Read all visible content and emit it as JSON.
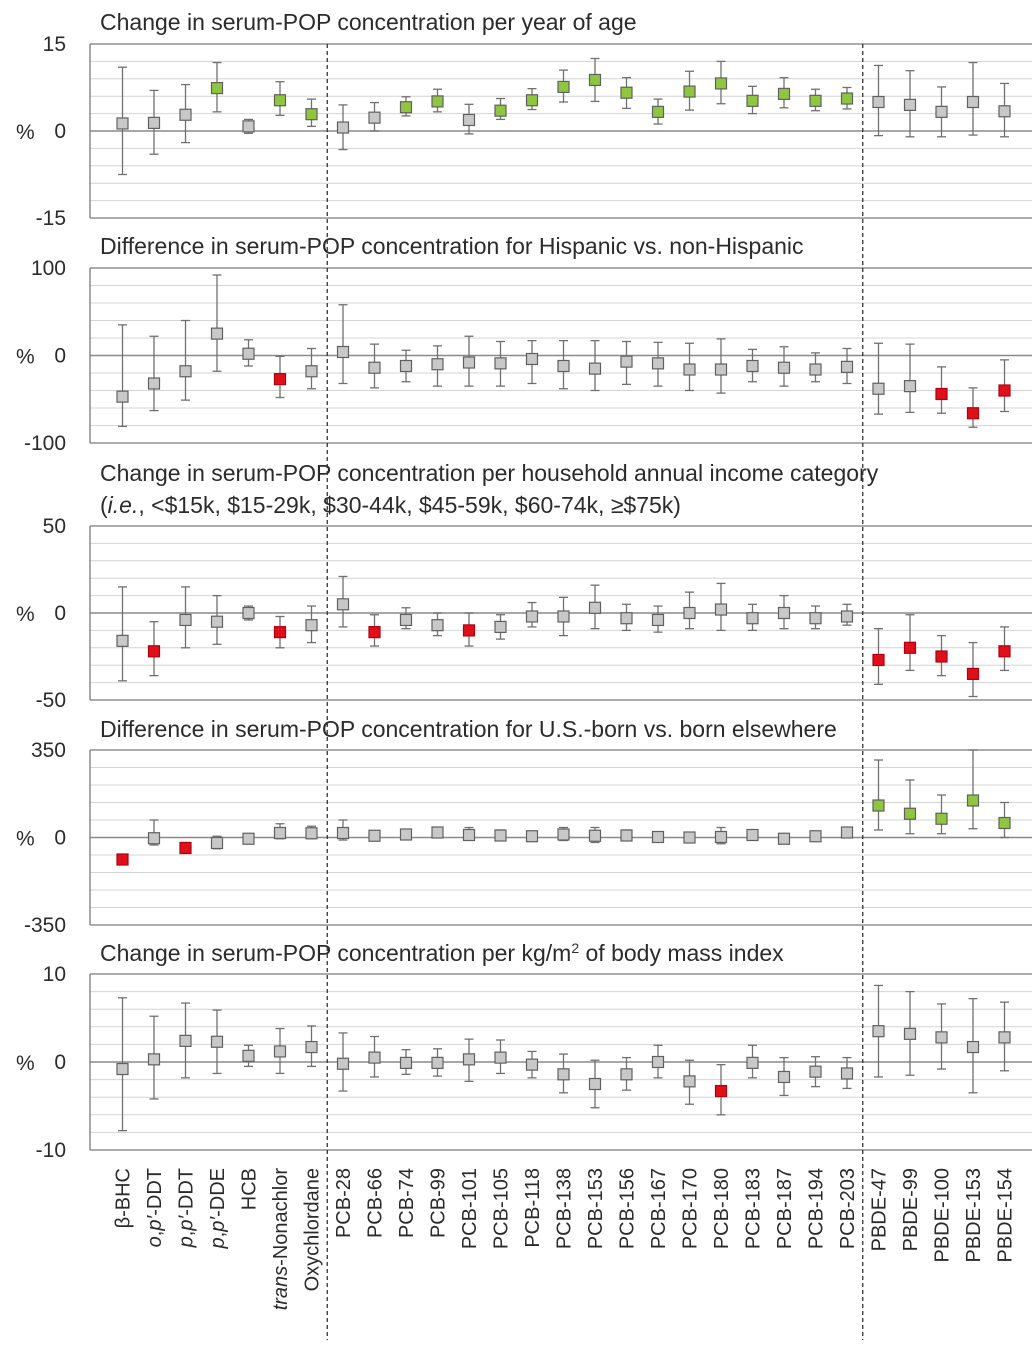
{
  "categories": [
    "β-BHC",
    "o,p′-DDT",
    "p,p′-DDT",
    "p,p′-DDE",
    "HCB",
    "trans-Nonachlor",
    "Oxychlordane",
    "PCB-28",
    "PCB-66",
    "PCB-74",
    "PCB-99",
    "PCB-101",
    "PCB-105",
    "PCB-118",
    "PCB-138",
    "PCB-153",
    "PCB-156",
    "PCB-167",
    "PCB-170",
    "PCB-180",
    "PCB-183",
    "PCB-187",
    "PCB-194",
    "PCB-203",
    "PBDE-47",
    "PBDE-99",
    "PBDE-100",
    "PBDE-153",
    "PBDE-154"
  ],
  "category_labels": [
    {
      "parts": [
        {
          "t": "β-BHC"
        }
      ]
    },
    {
      "parts": [
        {
          "t": "o",
          "i": true
        },
        {
          "t": ","
        },
        {
          "t": "p′",
          "i": true
        },
        {
          "t": "-DDT"
        }
      ]
    },
    {
      "parts": [
        {
          "t": "p",
          "i": true
        },
        {
          "t": ","
        },
        {
          "t": "p′",
          "i": true
        },
        {
          "t": "-DDT"
        }
      ]
    },
    {
      "parts": [
        {
          "t": "p",
          "i": true
        },
        {
          "t": ","
        },
        {
          "t": "p′",
          "i": true
        },
        {
          "t": "-DDE"
        }
      ]
    },
    {
      "parts": [
        {
          "t": "HCB"
        }
      ]
    },
    {
      "parts": [
        {
          "t": "trans",
          "i": true
        },
        {
          "t": "-Nonachlor"
        }
      ]
    },
    {
      "parts": [
        {
          "t": "Oxychlordane"
        }
      ]
    },
    {
      "parts": [
        {
          "t": "PCB-28"
        }
      ]
    },
    {
      "parts": [
        {
          "t": "PCB-66"
        }
      ]
    },
    {
      "parts": [
        {
          "t": "PCB-74"
        }
      ]
    },
    {
      "parts": [
        {
          "t": "PCB-99"
        }
      ]
    },
    {
      "parts": [
        {
          "t": "PCB-101"
        }
      ]
    },
    {
      "parts": [
        {
          "t": "PCB-105"
        }
      ]
    },
    {
      "parts": [
        {
          "t": "PCB-118"
        }
      ]
    },
    {
      "parts": [
        {
          "t": "PCB-138"
        }
      ]
    },
    {
      "parts": [
        {
          "t": "PCB-153"
        }
      ]
    },
    {
      "parts": [
        {
          "t": "PCB-156"
        }
      ]
    },
    {
      "parts": [
        {
          "t": "PCB-167"
        }
      ]
    },
    {
      "parts": [
        {
          "t": "PCB-170"
        }
      ]
    },
    {
      "parts": [
        {
          "t": "PCB-180"
        }
      ]
    },
    {
      "parts": [
        {
          "t": "PCB-183"
        }
      ]
    },
    {
      "parts": [
        {
          "t": "PCB-187"
        }
      ]
    },
    {
      "parts": [
        {
          "t": "PCB-194"
        }
      ]
    },
    {
      "parts": [
        {
          "t": "PCB-203"
        }
      ]
    },
    {
      "parts": [
        {
          "t": "PBDE-47"
        }
      ]
    },
    {
      "parts": [
        {
          "t": "PBDE-99"
        }
      ]
    },
    {
      "parts": [
        {
          "t": "PBDE-100"
        }
      ]
    },
    {
      "parts": [
        {
          "t": "PBDE-153"
        }
      ]
    },
    {
      "parts": [
        {
          "t": "PBDE-154"
        }
      ]
    }
  ],
  "group_separators_after_index": [
    6,
    23
  ],
  "colors": {
    "increase": "#8ec63f",
    "decrease": "#e0101a",
    "not_significant": "#c8c8c8",
    "marker_edge": "#606060",
    "errorbar": "#707070",
    "gridline": "#d4d4d4",
    "axis": "#7a7a7a"
  },
  "chart_data": [
    {
      "type": "scatter",
      "title_lines": [
        "Change in serum-POP concentration per year of age"
      ],
      "ylabel": "%",
      "ylim": [
        -15,
        15
      ],
      "yticks": [
        "15",
        "0",
        "-15"
      ],
      "values": [
        1.3,
        1.4,
        2.8,
        7.4,
        0.8,
        5.3,
        2.9,
        0.6,
        2.3,
        4.1,
        5.1,
        1.9,
        3.5,
        5.3,
        7.6,
        8.8,
        6.6,
        3.3,
        6.8,
        8.2,
        5.2,
        6.4,
        5.2,
        5.6,
        5.0,
        4.5,
        3.3,
        5.0,
        3.4
      ],
      "lower": [
        -7.5,
        -4.0,
        -2.0,
        3.3,
        -0.4,
        2.7,
        0.8,
        -3.2,
        0.0,
        2.6,
        3.3,
        -0.5,
        2.0,
        3.7,
        5.0,
        5.1,
        3.9,
        1.2,
        3.6,
        4.7,
        3.0,
        4.0,
        3.5,
        3.8,
        -0.8,
        -1.0,
        -1.0,
        -0.7,
        -1.0
      ],
      "upper": [
        11.0,
        7.0,
        8.0,
        11.8,
        2.0,
        8.5,
        5.5,
        4.5,
        4.9,
        5.9,
        7.2,
        4.6,
        5.6,
        7.3,
        10.5,
        12.5,
        9.2,
        5.5,
        10.3,
        12.0,
        7.7,
        9.2,
        7.2,
        7.5,
        11.3,
        10.4,
        7.6,
        11.8,
        8.2
      ],
      "significance": [
        "n",
        "n",
        "n",
        "+",
        "n",
        "+",
        "+",
        "n",
        "n",
        "+",
        "+",
        "n",
        "+",
        "+",
        "+",
        "+",
        "+",
        "+",
        "+",
        "+",
        "+",
        "+",
        "+",
        "+",
        "n",
        "n",
        "n",
        "n",
        "n"
      ]
    },
    {
      "type": "scatter",
      "title_lines": [
        "Difference in serum-POP concentration for Hispanic vs. non-Hispanic"
      ],
      "ylabel": "%",
      "ylim": [
        -100,
        100
      ],
      "yticks": [
        "100",
        "0",
        "-100"
      ],
      "values": [
        -47,
        -32,
        -18,
        25,
        2,
        -27,
        -18,
        4,
        -14,
        -12,
        -10,
        -8,
        -9,
        -4,
        -12,
        -15,
        -7,
        -9,
        -16,
        -16,
        -12,
        -14,
        -16,
        -13,
        -38,
        -35,
        -44,
        -66,
        -40
      ],
      "lower": [
        -81,
        -63,
        -51,
        -18,
        -12,
        -48,
        -38,
        -32,
        -37,
        -30,
        -35,
        -35,
        -35,
        -32,
        -38,
        -40,
        -33,
        -35,
        -40,
        -43,
        -30,
        -35,
        -30,
        -32,
        -67,
        -65,
        -66,
        -82,
        -64
      ],
      "upper": [
        35,
        22,
        40,
        92,
        18,
        -1,
        8,
        58,
        13,
        6,
        11,
        22,
        16,
        17,
        17,
        17,
        16,
        15,
        14,
        19,
        7,
        10,
        3,
        8,
        14,
        13,
        -13,
        -37,
        -5
      ],
      "significance": [
        "n",
        "n",
        "n",
        "n",
        "n",
        "-",
        "n",
        "n",
        "n",
        "n",
        "n",
        "n",
        "n",
        "n",
        "n",
        "n",
        "n",
        "n",
        "n",
        "n",
        "n",
        "n",
        "n",
        "n",
        "n",
        "n",
        "-",
        "-",
        "-"
      ]
    },
    {
      "type": "scatter",
      "title_lines": [
        [
          {
            "t": "Change in serum-POP concentration per household annual income category"
          }
        ],
        [
          {
            "t": "("
          },
          {
            "t": "i.e.",
            "i": true
          },
          {
            "t": ", <$15k, $15-29k, $30-44k, $45-59k, $60-74k, ≥$75k)"
          }
        ]
      ],
      "ylabel": "%",
      "ylim": [
        -50,
        50
      ],
      "yticks": [
        "50",
        "0",
        "-50"
      ],
      "values": [
        -16,
        -22,
        -4,
        -5,
        0,
        -11,
        -7,
        5,
        -11,
        -4,
        -7,
        -10,
        -8,
        -2,
        -2,
        3,
        -3,
        -4,
        0,
        2,
        -3,
        0,
        -3,
        -2,
        -27,
        -20,
        -25,
        -35,
        -22
      ],
      "lower": [
        -39,
        -36,
        -20,
        -18,
        -4,
        -20,
        -17,
        -8,
        -19,
        -9,
        -13,
        -19,
        -15,
        -8,
        -13,
        -9,
        -10,
        -11,
        -9,
        -10,
        -10,
        -9,
        -9,
        -7,
        -41,
        -33,
        -36,
        -48,
        -33
      ],
      "upper": [
        15,
        -5,
        15,
        10,
        4,
        -2,
        4,
        21,
        -1,
        3,
        0,
        0,
        -1,
        6,
        9,
        16,
        5,
        4,
        12,
        17,
        5,
        10,
        4,
        5,
        -9,
        -1,
        -13,
        -17,
        -8
      ],
      "significance": [
        "n",
        "-",
        "n",
        "n",
        "n",
        "-",
        "n",
        "n",
        "-",
        "n",
        "n",
        "-",
        "n",
        "n",
        "n",
        "n",
        "n",
        "n",
        "n",
        "n",
        "n",
        "n",
        "n",
        "n",
        "-",
        "-",
        "-",
        "-",
        "-"
      ]
    },
    {
      "type": "scatter",
      "title_lines": [
        "Difference in serum-POP concentration for U.S.-born vs. born elsewhere"
      ],
      "ylabel": "%",
      "ylim": [
        -350,
        350
      ],
      "yticks": [
        "350",
        "0",
        "-350"
      ],
      "values": [
        -88,
        -3,
        -42,
        -22,
        -5,
        18,
        17,
        18,
        7,
        12,
        20,
        10,
        8,
        5,
        12,
        7,
        8,
        2,
        0,
        2,
        10,
        -5,
        5,
        20,
        128,
        95,
        75,
        148,
        58
      ],
      "lower": [
        -95,
        -30,
        -60,
        -45,
        -20,
        -5,
        -5,
        -10,
        -8,
        -5,
        5,
        -10,
        -8,
        -10,
        -12,
        -20,
        -10,
        -12,
        -15,
        -25,
        -5,
        -20,
        -10,
        5,
        30,
        15,
        15,
        35,
        0
      ],
      "upper": [
        -78,
        70,
        -20,
        5,
        10,
        55,
        45,
        70,
        25,
        30,
        40,
        40,
        30,
        20,
        40,
        40,
        30,
        15,
        20,
        40,
        30,
        15,
        20,
        40,
        310,
        230,
        170,
        350,
        140
      ],
      "significance": [
        "-",
        "n",
        "-",
        "n",
        "n",
        "n",
        "n",
        "n",
        "n",
        "n",
        "n",
        "n",
        "n",
        "n",
        "n",
        "n",
        "n",
        "n",
        "n",
        "n",
        "n",
        "n",
        "n",
        "n",
        "+",
        "+",
        "+",
        "+",
        "+"
      ]
    },
    {
      "type": "scatter",
      "title_lines": [
        [
          {
            "t": "Change in serum-POP concentration per kg/m"
          },
          {
            "t": "2",
            "sup": true
          },
          {
            "t": " of body mass index"
          }
        ]
      ],
      "ylabel": "%",
      "ylim": [
        -10,
        10
      ],
      "yticks": [
        "10",
        "0",
        "-10"
      ],
      "values": [
        -0.8,
        0.3,
        2.4,
        2.3,
        0.7,
        1.2,
        1.7,
        -0.2,
        0.5,
        -0.1,
        -0.1,
        0.3,
        0.5,
        -0.3,
        -1.4,
        -2.5,
        -1.4,
        0.0,
        -2.2,
        -3.3,
        -0.1,
        -1.7,
        -1.1,
        -1.3,
        3.5,
        3.2,
        2.8,
        1.7,
        2.8
      ],
      "lower": [
        -7.8,
        -4.2,
        -1.8,
        -1.3,
        -0.5,
        -1.3,
        -0.5,
        -3.3,
        -1.7,
        -1.4,
        -1.6,
        -2.2,
        -1.3,
        -1.8,
        -3.5,
        -5.2,
        -3.2,
        -1.8,
        -4.8,
        -6.0,
        -1.8,
        -3.8,
        -2.8,
        -3.0,
        -1.7,
        -1.5,
        -0.8,
        -3.5,
        -1.0
      ],
      "upper": [
        7.3,
        5.2,
        6.7,
        5.9,
        1.9,
        3.8,
        4.1,
        3.3,
        2.9,
        1.4,
        1.5,
        2.6,
        2.5,
        1.2,
        0.9,
        0.2,
        0.5,
        1.9,
        0.2,
        -0.3,
        1.9,
        0.5,
        0.6,
        0.5,
        8.7,
        8.0,
        6.6,
        7.2,
        6.8
      ],
      "significance": [
        "n",
        "n",
        "n",
        "n",
        "n",
        "n",
        "n",
        "n",
        "n",
        "n",
        "n",
        "n",
        "n",
        "n",
        "n",
        "n",
        "n",
        "n",
        "n",
        "-",
        "n",
        "n",
        "n",
        "n",
        "n",
        "n",
        "n",
        "n",
        "n"
      ]
    }
  ]
}
